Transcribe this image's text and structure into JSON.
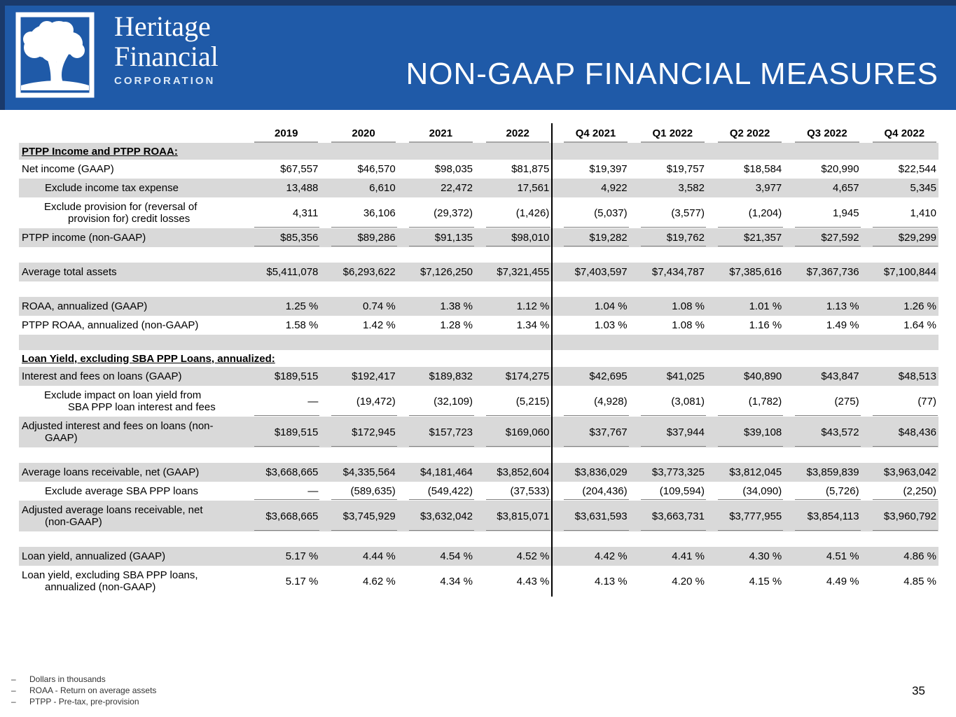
{
  "colors": {
    "banner": "#1F5AA8",
    "banner_accent": "#1A3A6B",
    "row_shade": "#D9D9D9",
    "divider": "#000000"
  },
  "header": {
    "logo": {
      "line1": "Heritage",
      "line2": "Financial",
      "line3": "CORPORATION"
    },
    "title": "NON-GAAP FINANCIAL MEASURES"
  },
  "table": {
    "columns": [
      "2019",
      "2020",
      "2021",
      "2022",
      "Q4 2021",
      "Q1 2022",
      "Q2 2022",
      "Q3 2022",
      "Q4 2022"
    ],
    "rows": [
      {
        "style": "section",
        "shaded": true,
        "label": "PTPP Income and PTPP ROAA:"
      },
      {
        "style": "plain",
        "shaded": false,
        "label": "Net income (GAAP)",
        "values": [
          "$67,557",
          "$46,570",
          "$98,035",
          "$81,875",
          "$19,397",
          "$19,757",
          "$18,584",
          "$20,990",
          "$22,544"
        ]
      },
      {
        "style": "indent",
        "shaded": true,
        "label": "Exclude income tax expense",
        "values": [
          "13,488",
          "6,610",
          "22,472",
          "17,561",
          "4,922",
          "3,582",
          "3,977",
          "4,657",
          "5,345"
        ]
      },
      {
        "style": "indent-hang",
        "shaded": false,
        "underline": true,
        "label": "Exclude provision for (reversal of\nprovision for) credit losses",
        "values": [
          "4,311",
          "36,106",
          "(29,372)",
          "(1,426)",
          "(5,037)",
          "(3,577)",
          "(1,204)",
          "1,945",
          "1,410"
        ]
      },
      {
        "style": "plain",
        "shaded": true,
        "underline": true,
        "label": "PTPP income (non-GAAP)",
        "values": [
          "$85,356",
          "$89,286",
          "$91,135",
          "$98,010",
          "$19,282",
          "$19,762",
          "$21,357",
          "$27,592",
          "$29,299"
        ]
      },
      {
        "style": "spacer",
        "shaded": false
      },
      {
        "style": "plain",
        "shaded": true,
        "label": "Average total assets",
        "values": [
          "$5,411,078",
          "$6,293,622",
          "$7,126,250",
          "$7,321,455",
          "$7,403,597",
          "$7,434,787",
          "$7,385,616",
          "$7,367,736",
          "$7,100,844"
        ]
      },
      {
        "style": "spacer",
        "shaded": false
      },
      {
        "style": "plain",
        "shaded": true,
        "label": "ROAA, annualized (GAAP)",
        "values": [
          "1.25 %",
          "0.74 %",
          "1.38 %",
          "1.12 %",
          "1.04 %",
          "1.08 %",
          "1.01 %",
          "1.13 %",
          "1.26 %"
        ]
      },
      {
        "style": "plain",
        "shaded": false,
        "label": "PTPP ROAA, annualized (non-GAAP)",
        "values": [
          "1.58 %",
          "1.42 %",
          "1.28 %",
          "1.34 %",
          "1.03 %",
          "1.08 %",
          "1.16 %",
          "1.49 %",
          "1.64 %"
        ]
      },
      {
        "style": "spacer",
        "shaded": true
      },
      {
        "style": "section",
        "shaded": false,
        "label": "Loan Yield, excluding SBA PPP Loans, annualized:"
      },
      {
        "style": "plain",
        "shaded": true,
        "label": "Interest and fees on loans (GAAP)",
        "values": [
          "$189,515",
          "$192,417",
          "$189,832",
          "$174,275",
          "$42,695",
          "$41,025",
          "$40,890",
          "$43,847",
          "$48,513"
        ]
      },
      {
        "style": "indent-hang",
        "shaded": false,
        "underline": true,
        "label": "Exclude impact on loan yield from\nSBA PPP loan interest and fees",
        "values": [
          "—",
          "(19,472)",
          "(32,109)",
          "(5,215)",
          "(4,928)",
          "(3,081)",
          "(1,782)",
          "(275)",
          "(77)"
        ]
      },
      {
        "style": "hang",
        "shaded": true,
        "underline": true,
        "label": "Adjusted interest and fees on loans (non-\nGAAP)",
        "values": [
          "$189,515",
          "$172,945",
          "$157,723",
          "$169,060",
          "$37,767",
          "$37,944",
          "$39,108",
          "$43,572",
          "$48,436"
        ]
      },
      {
        "style": "spacer",
        "shaded": false
      },
      {
        "style": "plain",
        "shaded": true,
        "label": "Average loans receivable, net (GAAP)",
        "values": [
          "$3,668,665",
          "$4,335,564",
          "$4,181,464",
          "$3,852,604",
          "$3,836,029",
          "$3,773,325",
          "$3,812,045",
          "$3,859,839",
          "$3,963,042"
        ]
      },
      {
        "style": "indent",
        "shaded": false,
        "underline": true,
        "label": "Exclude average SBA PPP loans",
        "values": [
          "—",
          "(589,635)",
          "(549,422)",
          "(37,533)",
          "(204,436)",
          "(109,594)",
          "(34,090)",
          "(5,726)",
          "(2,250)"
        ]
      },
      {
        "style": "hang",
        "shaded": true,
        "underline": true,
        "label": "Adjusted average loans receivable, net\n(non-GAAP)",
        "values": [
          "$3,668,665",
          "$3,745,929",
          "$3,632,042",
          "$3,815,071",
          "$3,631,593",
          "$3,663,731",
          "$3,777,955",
          "$3,854,113",
          "$3,960,792"
        ]
      },
      {
        "style": "spacer",
        "shaded": false
      },
      {
        "style": "plain",
        "shaded": true,
        "label": "Loan yield, annualized (GAAP)",
        "values": [
          "5.17 %",
          "4.44 %",
          "4.54 %",
          "4.52 %",
          "4.42 %",
          "4.41 %",
          "4.30 %",
          "4.51 %",
          "4.86 %"
        ]
      },
      {
        "style": "hang",
        "shaded": false,
        "label": "Loan yield, excluding SBA PPP loans,\nannualized (non-GAAP)",
        "values": [
          "5.17 %",
          "4.62 %",
          "4.34 %",
          "4.43 %",
          "4.13 %",
          "4.20 %",
          "4.15 %",
          "4.49 %",
          "4.85 %"
        ]
      }
    ]
  },
  "footnotes": {
    "bullet": "–",
    "items": [
      "Dollars in thousands",
      "ROAA - Return on average assets",
      "PTPP - Pre-tax, pre-provision"
    ]
  },
  "page_number": "35"
}
